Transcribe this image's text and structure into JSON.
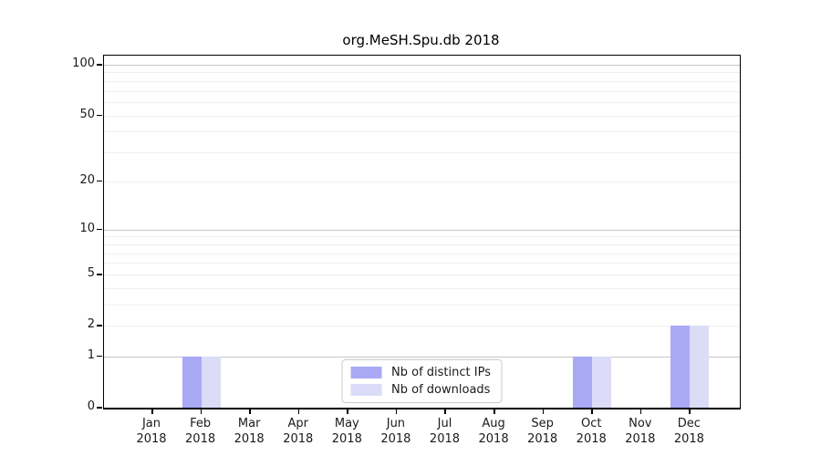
{
  "chart_data": {
    "type": "bar",
    "title": "org.MeSH.Spu.db 2018",
    "xlabel": "",
    "ylabel": "",
    "x_year": "2018",
    "categories": [
      "Jan",
      "Feb",
      "Mar",
      "Apr",
      "May",
      "Jun",
      "Jul",
      "Aug",
      "Sep",
      "Oct",
      "Nov",
      "Dec"
    ],
    "series": [
      {
        "name": "Nb of distinct IPs",
        "color": "#a9a9f6",
        "values": [
          0,
          1,
          0,
          0,
          0,
          0,
          0,
          0,
          0,
          1,
          0,
          2
        ]
      },
      {
        "name": "Nb of downloads",
        "color": "#dcdcf9",
        "values": [
          0,
          1,
          0,
          0,
          0,
          0,
          0,
          0,
          0,
          1,
          0,
          2
        ]
      }
    ],
    "y_axis": {
      "scale": "log1p",
      "ylim": [
        0,
        100
      ],
      "ticks": [
        0,
        1,
        2,
        5,
        10,
        20,
        50,
        100
      ],
      "tick_labels": [
        "0",
        "1",
        "2",
        "5",
        "10",
        "20",
        "50",
        "100"
      ],
      "major_gridlines": [
        1,
        10,
        100
      ],
      "minor_gridlines": [
        2,
        3,
        4,
        5,
        6,
        7,
        8,
        9,
        20,
        30,
        40,
        50,
        60,
        70,
        80,
        90
      ]
    },
    "grid": true,
    "legend_position": "bottom-center",
    "colors": {
      "bar_distinct_ips": "#a9a9f6",
      "bar_downloads": "#dcdcf9",
      "grid_major": "#c6c6c6",
      "grid_minor": "#efefef",
      "axis": "#000000",
      "legend_border": "#cccccc",
      "background": "#ffffff"
    }
  }
}
